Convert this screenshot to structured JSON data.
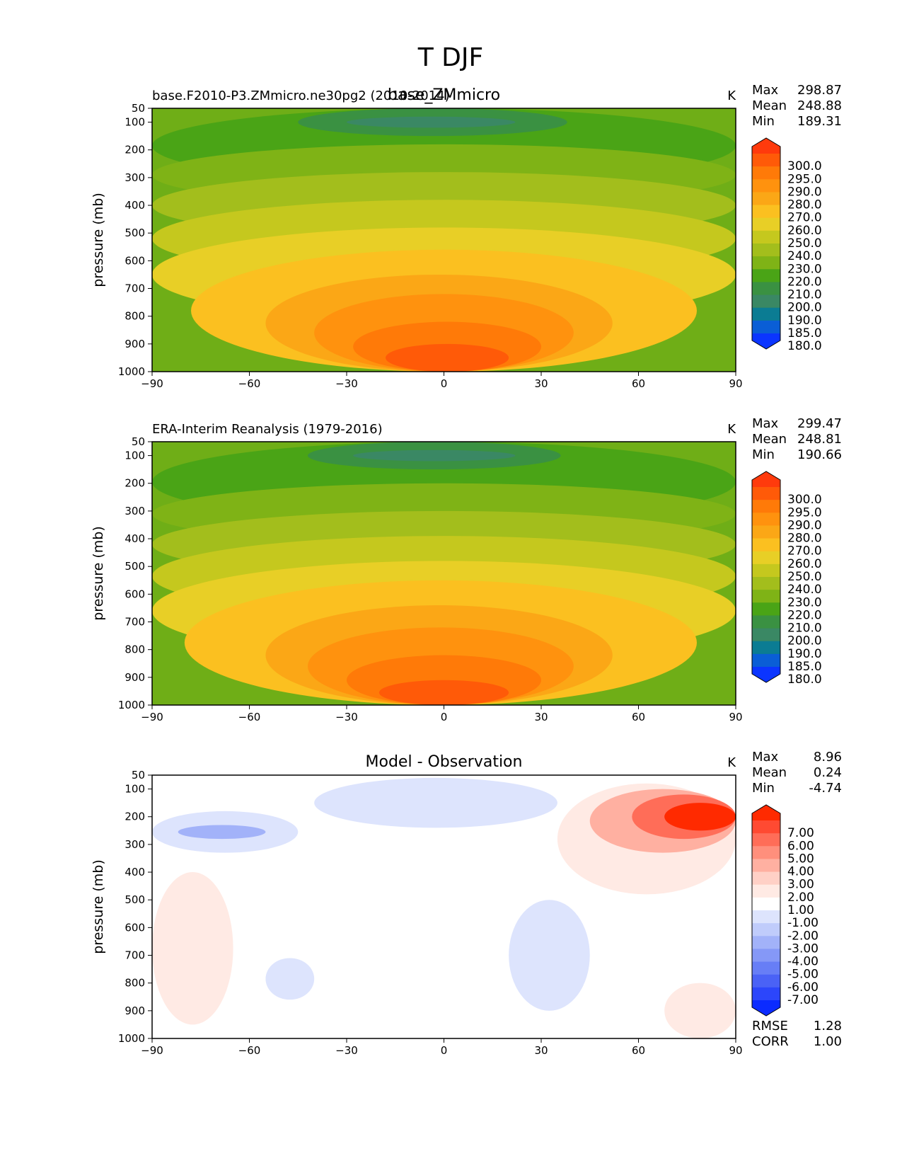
{
  "figure": {
    "title": "T DJF"
  },
  "chart_data": [
    {
      "type": "contourf",
      "left_title": "base.F2010-P3.ZMmicro.ne30pg2 (2010-2014)",
      "center_title": "base_ZMmicro",
      "units": "K",
      "ylabel": "pressure (mb)",
      "xlim": [
        -90,
        90
      ],
      "ylim": [
        1000,
        50
      ],
      "xticks": [
        "−90",
        "−60",
        "−30",
        "0",
        "30",
        "60",
        "90"
      ],
      "yticks": [
        "50",
        "100",
        "200",
        "300",
        "400",
        "500",
        "600",
        "700",
        "800",
        "900",
        "1000"
      ],
      "stats": [
        {
          "label": "Max",
          "value": "298.87"
        },
        {
          "label": "Mean",
          "value": "248.88"
        },
        {
          "label": "Min",
          "value": "189.31"
        }
      ],
      "colorbar": {
        "labels": [
          "300.0",
          "295.0",
          "290.0",
          "280.0",
          "270.0",
          "260.0",
          "250.0",
          "240.0",
          "230.0",
          "220.0",
          "210.0",
          "200.0",
          "190.0",
          "185.0",
          "180.0"
        ],
        "colors": [
          "#ff3a0c",
          "#ff5a08",
          "#ff7a08",
          "#ff920e",
          "#fba716",
          "#fbc020",
          "#e8cf26",
          "#c5c81e",
          "#a3be1c",
          "#7fb316",
          "#4aa416",
          "#3a9142",
          "#3a8864",
          "#0b7c93",
          "#0a5ed6",
          "#0b35ff"
        ]
      },
      "regions": [
        {
          "level": "210.0",
          "value": 210,
          "lat": [
            -90,
            90
          ],
          "p": [
            50,
            320
          ]
        },
        {
          "level": "200.0",
          "value": 200,
          "lat": [
            -45,
            38
          ],
          "p": [
            50,
            150
          ]
        },
        {
          "level": "190.0",
          "value": 190,
          "lat": [
            -30,
            22
          ],
          "p": [
            80,
            120
          ]
        },
        {
          "level": "220.0",
          "value": 220,
          "lat": [
            -90,
            90
          ],
          "p": [
            180,
            400
          ]
        },
        {
          "level": "230.0",
          "value": 230,
          "lat": [
            -90,
            90
          ],
          "p": [
            280,
            520
          ]
        },
        {
          "level": "240.0",
          "value": 240,
          "lat": [
            -90,
            90
          ],
          "p": [
            380,
            660
          ]
        },
        {
          "level": "250.0",
          "value": 250,
          "lat": [
            -90,
            90
          ],
          "p": [
            480,
            820
          ]
        },
        {
          "level": "260.0",
          "value": 260,
          "lat": [
            -78,
            78
          ],
          "p": [
            560,
            1000
          ]
        },
        {
          "level": "270.0",
          "value": 270,
          "lat": [
            -55,
            52
          ],
          "p": [
            650,
            1000
          ]
        },
        {
          "level": "280.0",
          "value": 280,
          "lat": [
            -40,
            40
          ],
          "p": [
            720,
            1000
          ]
        },
        {
          "level": "290.0",
          "value": 290,
          "lat": [
            -28,
            30
          ],
          "p": [
            820,
            1000
          ]
        },
        {
          "level": "295.0",
          "value": 295,
          "lat": [
            -18,
            20
          ],
          "p": [
            900,
            1000
          ]
        }
      ]
    },
    {
      "type": "contourf",
      "left_title": "ERA-Interim Reanalysis (1979-2016)",
      "center_title": "",
      "units": "K",
      "ylabel": "pressure (mb)",
      "xlim": [
        -90,
        90
      ],
      "ylim": [
        1000,
        50
      ],
      "xticks": [
        "−90",
        "−60",
        "−30",
        "0",
        "30",
        "60",
        "90"
      ],
      "yticks": [
        "50",
        "100",
        "200",
        "300",
        "400",
        "500",
        "600",
        "700",
        "800",
        "900",
        "1000"
      ],
      "stats": [
        {
          "label": "Max",
          "value": "299.47"
        },
        {
          "label": "Mean",
          "value": "248.81"
        },
        {
          "label": "Min",
          "value": "190.66"
        }
      ],
      "colorbar": {
        "labels": [
          "300.0",
          "295.0",
          "290.0",
          "280.0",
          "270.0",
          "260.0",
          "250.0",
          "240.0",
          "230.0",
          "220.0",
          "210.0",
          "200.0",
          "190.0",
          "185.0",
          "180.0"
        ],
        "colors": [
          "#ff3a0c",
          "#ff5a08",
          "#ff7a08",
          "#ff920e",
          "#fba716",
          "#fbc020",
          "#e8cf26",
          "#c5c81e",
          "#a3be1c",
          "#7fb316",
          "#4aa416",
          "#3a9142",
          "#3a8864",
          "#0b7c93",
          "#0a5ed6",
          "#0b35ff"
        ]
      },
      "regions": [
        {
          "level": "210.0",
          "value": 210,
          "lat": [
            -90,
            90
          ],
          "p": [
            50,
            340
          ]
        },
        {
          "level": "200.0",
          "value": 200,
          "lat": [
            -42,
            36
          ],
          "p": [
            50,
            150
          ]
        },
        {
          "level": "190.0",
          "value": 190,
          "lat": [
            -28,
            22
          ],
          "p": [
            80,
            120
          ]
        },
        {
          "level": "220.0",
          "value": 220,
          "lat": [
            -90,
            90
          ],
          "p": [
            200,
            420
          ]
        },
        {
          "level": "230.0",
          "value": 230,
          "lat": [
            -90,
            90
          ],
          "p": [
            300,
            540
          ]
        },
        {
          "level": "240.0",
          "value": 240,
          "lat": [
            -90,
            90
          ],
          "p": [
            390,
            680
          ]
        },
        {
          "level": "250.0",
          "value": 250,
          "lat": [
            -90,
            90
          ],
          "p": [
            480,
            840
          ]
        },
        {
          "level": "260.0",
          "value": 260,
          "lat": [
            -80,
            78
          ],
          "p": [
            550,
            1000
          ]
        },
        {
          "level": "270.0",
          "value": 270,
          "lat": [
            -55,
            52
          ],
          "p": [
            640,
            1000
          ]
        },
        {
          "level": "280.0",
          "value": 280,
          "lat": [
            -42,
            40
          ],
          "p": [
            720,
            1000
          ]
        },
        {
          "level": "290.0",
          "value": 290,
          "lat": [
            -30,
            30
          ],
          "p": [
            820,
            1000
          ]
        },
        {
          "level": "295.0",
          "value": 295,
          "lat": [
            -20,
            20
          ],
          "p": [
            910,
            1000
          ]
        }
      ]
    },
    {
      "type": "contourf",
      "left_title": "",
      "center_title": "Model - Observation",
      "units": "K",
      "ylabel": "pressure (mb)",
      "xlim": [
        -90,
        90
      ],
      "ylim": [
        1000,
        50
      ],
      "xticks": [
        "−90",
        "−60",
        "−30",
        "0",
        "30",
        "60",
        "90"
      ],
      "yticks": [
        "50",
        "100",
        "200",
        "300",
        "400",
        "500",
        "600",
        "700",
        "800",
        "900",
        "1000"
      ],
      "stats": [
        {
          "label": "Max",
          "value": "8.96"
        },
        {
          "label": "Mean",
          "value": "0.24"
        },
        {
          "label": "Min",
          "value": "-4.74"
        }
      ],
      "extra_stats": [
        {
          "label": "RMSE",
          "value": "1.28"
        },
        {
          "label": "CORR",
          "value": "1.00"
        }
      ],
      "colorbar": {
        "labels": [
          "7.00",
          "6.00",
          "5.00",
          "4.00",
          "3.00",
          "2.00",
          "1.00",
          "-1.00",
          "-2.00",
          "-3.00",
          "-4.00",
          "-5.00",
          "-6.00",
          "-7.00"
        ],
        "colors": [
          "#ff2a00",
          "#ff4a32",
          "#ff6d58",
          "#ff8f7c",
          "#ffb0a1",
          "#ffd0c6",
          "#ffeae4",
          "#ffffff",
          "#dde4fd",
          "#c0ccfb",
          "#a2b2f9",
          "#8598f7",
          "#677ef6",
          "#4a62f6",
          "#2c46fb",
          "#0b2bff"
        ]
      },
      "regions": [
        {
          "level": "1.00",
          "value": 1.5,
          "lat": [
            35,
            90
          ],
          "p": [
            80,
            480
          ]
        },
        {
          "level": "3.00",
          "value": 3.5,
          "lat": [
            45,
            90
          ],
          "p": [
            100,
            330
          ]
        },
        {
          "level": "5.00",
          "value": 5.5,
          "lat": [
            58,
            90
          ],
          "p": [
            120,
            280
          ]
        },
        {
          "level": "7.00",
          "value": 8,
          "lat": [
            68,
            90
          ],
          "p": [
            150,
            250
          ]
        },
        {
          "level": "1.00",
          "value": 1.5,
          "lat": [
            -90,
            -65
          ],
          "p": [
            400,
            950
          ]
        },
        {
          "level": "1.00",
          "value": 1.5,
          "lat": [
            68,
            90
          ],
          "p": [
            800,
            1000
          ]
        },
        {
          "level": "-1.00",
          "value": -1.5,
          "lat": [
            -90,
            -45
          ],
          "p": [
            180,
            330
          ]
        },
        {
          "level": "-3.00",
          "value": -3.5,
          "lat": [
            -82,
            -55
          ],
          "p": [
            230,
            280
          ]
        },
        {
          "level": "-1.00",
          "value": -1.5,
          "lat": [
            -40,
            35
          ],
          "p": [
            60,
            240
          ]
        },
        {
          "level": "-1.00",
          "value": -1.5,
          "lat": [
            20,
            45
          ],
          "p": [
            500,
            900
          ]
        },
        {
          "level": "-1.00",
          "value": -1.5,
          "lat": [
            -55,
            -40
          ],
          "p": [
            710,
            860
          ]
        }
      ]
    }
  ]
}
